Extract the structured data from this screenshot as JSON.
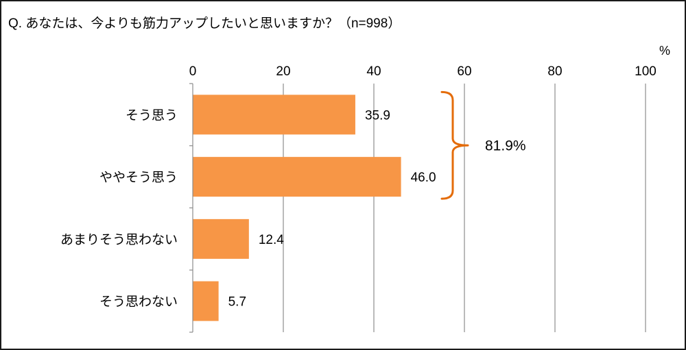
{
  "question": "Q. あなたは、今よりも筋力アップしたいと思いますか？（n=998）",
  "chart_data": {
    "type": "bar",
    "orientation": "horizontal",
    "title": "Q. あなたは、今よりも筋力アップしたいと思いますか？（n=998）",
    "unit_label": "%",
    "categories": [
      "そう思う",
      "ややそう思う",
      "あまりそう思わない",
      "そう思わない"
    ],
    "values": [
      35.9,
      46.0,
      12.4,
      5.7
    ],
    "value_labels": [
      "35.9",
      "46.0",
      "12.4",
      "5.7"
    ],
    "xlim": [
      0,
      100
    ],
    "ticks": [
      "0",
      "20",
      "40",
      "60",
      "80",
      "100"
    ],
    "tick_values": [
      0,
      20,
      40,
      60,
      80,
      100
    ],
    "grid": true,
    "bar_color": "#F79646",
    "bracket": {
      "spans_categories": [
        "そう思う",
        "ややそう思う"
      ],
      "label": "81.9%",
      "color": "#E46C0A"
    }
  }
}
